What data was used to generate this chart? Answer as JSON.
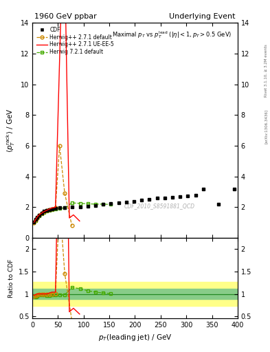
{
  "title_left": "1960 GeV ppbar",
  "title_right": "Underlying Event",
  "plot_title": "Maximal $p_T$ vs $p_T^{\\rm lead}$ ($|\\eta| < 1, p_T > 0.5$ GeV)",
  "xlabel": "$p_T$(leading jet) / GeV",
  "ylabel_main": "$\\langle p_T^{\\rm rack} \\rangle$ / GeV",
  "ylabel_ratio": "Ratio to CDF",
  "watermark": "CDF_2010_S8591881_QCD",
  "right_label_top": "Rivet 3.1.10, ≥ 3.2M events",
  "right_label_bot": "[arXiv:1306.3436]",
  "xlim": [
    0,
    400
  ],
  "ylim_main": [
    0,
    14
  ],
  "ylim_ratio": [
    0.45,
    2.25
  ],
  "cdf_x": [
    3,
    6,
    9,
    13,
    18,
    23,
    28,
    33,
    38,
    45,
    53,
    63,
    77,
    93,
    108,
    123,
    138,
    153,
    168,
    183,
    198,
    213,
    228,
    243,
    258,
    273,
    288,
    303,
    318,
    333,
    363,
    393
  ],
  "cdf_y": [
    1.05,
    1.2,
    1.35,
    1.5,
    1.63,
    1.73,
    1.8,
    1.85,
    1.88,
    1.93,
    1.97,
    1.98,
    2.0,
    2.02,
    2.08,
    2.12,
    2.18,
    2.22,
    2.28,
    2.32,
    2.38,
    2.45,
    2.52,
    2.58,
    2.62,
    2.65,
    2.7,
    2.72,
    2.78,
    3.2,
    2.18,
    3.18
  ],
  "cdf_yerr": [
    0.04,
    0.04,
    0.04,
    0.04,
    0.04,
    0.04,
    0.04,
    0.04,
    0.04,
    0.04,
    0.04,
    0.04,
    0.04,
    0.04,
    0.04,
    0.04,
    0.04,
    0.04,
    0.04,
    0.04,
    0.04,
    0.04,
    0.04,
    0.04,
    0.04,
    0.04,
    0.04,
    0.04,
    0.04,
    0.04,
    0.04,
    0.04
  ],
  "herwig271_x": [
    3,
    6,
    9,
    13,
    18,
    23,
    28,
    33,
    38,
    45,
    53,
    63,
    77
  ],
  "herwig271_y": [
    1.0,
    1.15,
    1.32,
    1.48,
    1.6,
    1.7,
    1.78,
    1.83,
    1.88,
    1.95,
    6.0,
    2.9,
    0.8
  ],
  "herwig271ueee5_x": [
    3,
    6,
    9,
    13,
    18,
    23,
    28,
    33,
    38,
    45,
    55,
    65,
    72,
    80,
    92
  ],
  "herwig271ueee5_y": [
    1.02,
    1.18,
    1.35,
    1.5,
    1.62,
    1.72,
    1.8,
    1.88,
    1.95,
    2.0,
    14.0,
    14.2,
    1.3,
    1.5,
    1.1
  ],
  "herwig721_x": [
    3,
    6,
    9,
    13,
    18,
    23,
    28,
    33,
    38,
    45,
    53,
    63,
    77,
    93,
    108,
    123,
    138,
    153
  ],
  "herwig721_y": [
    1.0,
    1.12,
    1.28,
    1.45,
    1.58,
    1.67,
    1.73,
    1.78,
    1.82,
    1.88,
    1.92,
    1.95,
    2.28,
    2.25,
    2.22,
    2.2,
    2.2,
    2.18
  ],
  "ratio_herwig271_x": [
    3,
    6,
    9,
    13,
    18,
    23,
    28,
    33,
    38,
    45,
    53,
    63,
    77
  ],
  "ratio_herwig271_y": [
    0.95,
    0.96,
    0.98,
    0.99,
    0.99,
    0.99,
    0.99,
    0.99,
    1.0,
    1.01,
    3.04,
    1.46,
    0.4
  ],
  "ratio_herwig271ueee5_x": [
    3,
    6,
    9,
    13,
    18,
    23,
    28,
    33,
    38,
    45,
    55,
    65,
    72,
    80,
    92
  ],
  "ratio_herwig271ueee5_y": [
    0.97,
    0.98,
    1.0,
    1.0,
    1.0,
    1.0,
    1.0,
    1.02,
    1.04,
    1.04,
    7.1,
    7.2,
    0.6,
    0.68,
    0.55
  ],
  "ratio_herwig721_x": [
    3,
    6,
    9,
    13,
    18,
    23,
    28,
    33,
    38,
    45,
    53,
    63,
    77,
    93,
    108,
    123,
    138,
    153
  ],
  "ratio_herwig721_y": [
    0.95,
    0.93,
    0.95,
    0.97,
    0.98,
    0.97,
    0.96,
    0.96,
    0.97,
    0.97,
    0.97,
    0.98,
    1.14,
    1.12,
    1.07,
    1.04,
    1.02,
    1.01
  ],
  "color_cdf": "#000000",
  "color_herwig271": "#cc8800",
  "color_herwig271ueee5": "#ff0000",
  "color_herwig721": "#44aa00",
  "bg_color": "#ffffff",
  "ratio_band_yellow_y1": 0.73,
  "ratio_band_yellow_y2": 1.27,
  "ratio_band_yellow_color": "#ffff88",
  "ratio_band_green_y1": 0.88,
  "ratio_band_green_y2": 1.12,
  "ratio_band_green_color": "#88cc88",
  "ratio_yticks": [
    0.5,
    1.0,
    1.5,
    2.0
  ],
  "ratio_yticklabels": [
    "0.5",
    "1",
    "1.5",
    "2"
  ],
  "main_yticks": [
    0,
    2,
    4,
    6,
    8,
    10,
    12,
    14
  ],
  "main_yticklabels": [
    "0",
    "2",
    "4",
    "6",
    "8",
    "10",
    "12",
    "14"
  ]
}
